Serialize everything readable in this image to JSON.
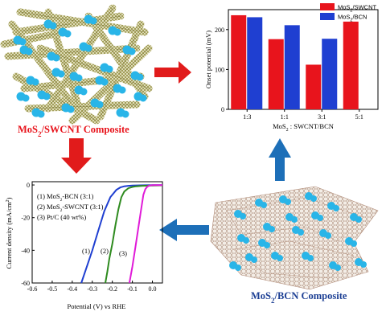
{
  "panels": {
    "swcnt_label_prefix": "MoS",
    "swcnt_label_sub": "2",
    "swcnt_label_suffix": "/SWCNT Composite",
    "bcn_label_prefix": "MoS",
    "bcn_label_sub": "2",
    "bcn_label_suffix": "/BCN Composite"
  },
  "colors": {
    "red": "#e8141c",
    "blue": "#1f3fd1",
    "green": "#2e8b1f",
    "magenta": "#e01bd8",
    "arrow_red": "#e11b1b",
    "arrow_blue": "#1d6fb8",
    "sphere": "#29b5e8"
  },
  "chart_data": [
    {
      "type": "bar",
      "title": "",
      "ylabel": "Onset potential (mV)",
      "xlabel_prefix": "MoS",
      "xlabel_sub": "2",
      "xlabel_suffix": " : SWCNT/BCN",
      "categories": [
        "1:3",
        "1:1",
        "3:1",
        "5:1"
      ],
      "series": [
        {
          "name_prefix": "MoS",
          "name_sub": "2",
          "name_suffix": "/SWCNT",
          "color": "#e8141c",
          "values": [
            236,
            176,
            112,
            220
          ]
        },
        {
          "name_prefix": "MoS",
          "name_sub": "2",
          "name_suffix": "/BCN",
          "color": "#1f3fd1",
          "values": [
            231,
            211,
            177,
            null
          ]
        }
      ],
      "ylim": [
        0,
        250
      ],
      "yticks": [
        "0",
        "100",
        "200"
      ],
      "legend": "top-right"
    },
    {
      "type": "line",
      "title": "",
      "xlabel": "Potential (V) vs RHE",
      "ylabel": "Current density (mA/cm",
      "ylabel_sup": "2",
      "ylabel_end": ")",
      "xlim": [
        -0.6,
        0.05
      ],
      "ylim": [
        -60,
        2
      ],
      "xticks": [
        "-0.6",
        "-0.5",
        "-0.4",
        "-0.3",
        "-0.2",
        "-0.1",
        "0.0"
      ],
      "yticks": [
        "0",
        "-20",
        "-40",
        "-60"
      ],
      "legend": [
        {
          "prefix": "(1) MoS",
          "sub": "2",
          "suffix": "-BCN (3:1)"
        },
        {
          "prefix": "(2) MoS",
          "sub": "2",
          "suffix": "-SWCNT (3:1)"
        },
        {
          "prefix": "(3) Pt/C (40 wt%)",
          "sub": "",
          "suffix": ""
        }
      ],
      "series": [
        {
          "label": "(1)",
          "color": "#1f3fd1",
          "x": [
            -0.355,
            -0.33,
            -0.3,
            -0.27,
            -0.24,
            -0.21,
            -0.18,
            -0.16,
            -0.14,
            -0.12,
            -0.1,
            -0.06,
            0.0,
            0.05
          ],
          "y": [
            -60,
            -51,
            -40,
            -28,
            -16,
            -7.5,
            -3,
            -1.5,
            -0.8,
            -0.5,
            -0.3,
            -0.2,
            -0.1,
            -0.1
          ]
        },
        {
          "label": "(2)",
          "color": "#2e8b1f",
          "x": [
            -0.235,
            -0.225,
            -0.215,
            -0.2,
            -0.185,
            -0.17,
            -0.155,
            -0.14,
            -0.12,
            -0.1,
            -0.08,
            -0.05,
            0.0,
            0.05
          ],
          "y": [
            -60,
            -53,
            -45,
            -36,
            -25,
            -15,
            -7.5,
            -4,
            -2,
            -1.2,
            -0.8,
            -0.5,
            -0.3,
            -0.2
          ]
        },
        {
          "label": "(3)",
          "color": "#e01bd8",
          "x": [
            -0.115,
            -0.1,
            -0.085,
            -0.07,
            -0.055,
            -0.045,
            -0.035,
            -0.025,
            -0.015,
            0.0,
            0.05
          ],
          "y": [
            -60,
            -50,
            -38,
            -26,
            -14,
            -6,
            -2.5,
            -1,
            -0.4,
            -0.1,
            -0.05
          ]
        }
      ],
      "curve_labels": [
        "(1)",
        "(2)",
        "(3)"
      ]
    }
  ]
}
